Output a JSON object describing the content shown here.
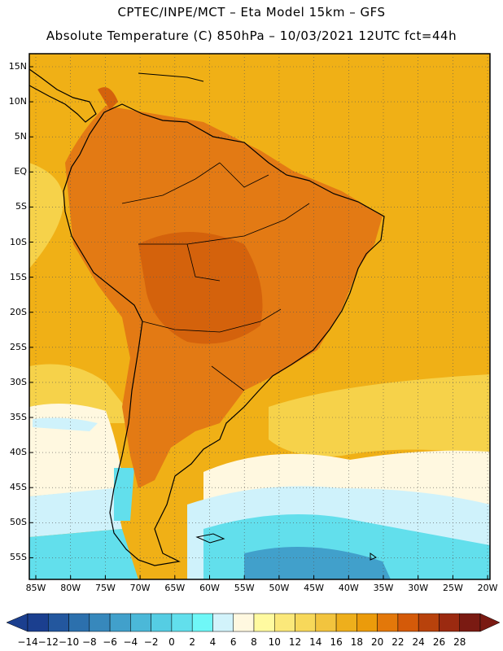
{
  "header": {
    "line1": "CPTEC/INPE/MCT –  Eta Model 15km – GFS",
    "line2": "Absolute Temperature (C) 850hPa – 10/03/2021 12UTC fct=44h"
  },
  "map": {
    "lat_ticks": [
      "15N",
      "10N",
      "5N",
      "EQ",
      "5S",
      "10S",
      "15S",
      "20S",
      "25S",
      "30S",
      "35S",
      "40S",
      "45S",
      "50S",
      "55S"
    ],
    "lon_ticks": [
      "85W",
      "80W",
      "75W",
      "70W",
      "65W",
      "60W",
      "55W",
      "50W",
      "45W",
      "40W",
      "35W",
      "30W",
      "25W",
      "20W"
    ],
    "coastline_color": "#000000",
    "grid_style": "dotted"
  },
  "colorbar": {
    "labels": [
      "-14",
      "-12",
      "-10",
      "-8",
      "-6",
      "-4",
      "-2",
      "0",
      "2",
      "4",
      "6",
      "8",
      "10",
      "12",
      "14",
      "16",
      "18",
      "20",
      "22",
      "24",
      "26",
      "28"
    ],
    "colors": [
      "#1b3f8f",
      "#23579e",
      "#2c70ad",
      "#3788bc",
      "#41a0cb",
      "#4bb8d8",
      "#55cde3",
      "#62dfec",
      "#6ff7f7",
      "#d2f3fb",
      "#fff8e0",
      "#fffaa0",
      "#fbe87a",
      "#f7d85a",
      "#f2c43e",
      "#eeaf1c",
      "#eb9b0b",
      "#e3780a",
      "#d45a09",
      "#b8420c",
      "#9b2a10",
      "#7a1a12"
    ]
  },
  "palette": {
    "warm_land": "#e37a14",
    "warm_dark": "#d4620c",
    "ocean_warm": "#f0b016",
    "ocean_mid": "#f6d24a",
    "cool_light": "#fff8e0",
    "cool_cyan": "#cff2fb",
    "cool_mid": "#62dfec",
    "cool_deep": "#41a0cb"
  }
}
